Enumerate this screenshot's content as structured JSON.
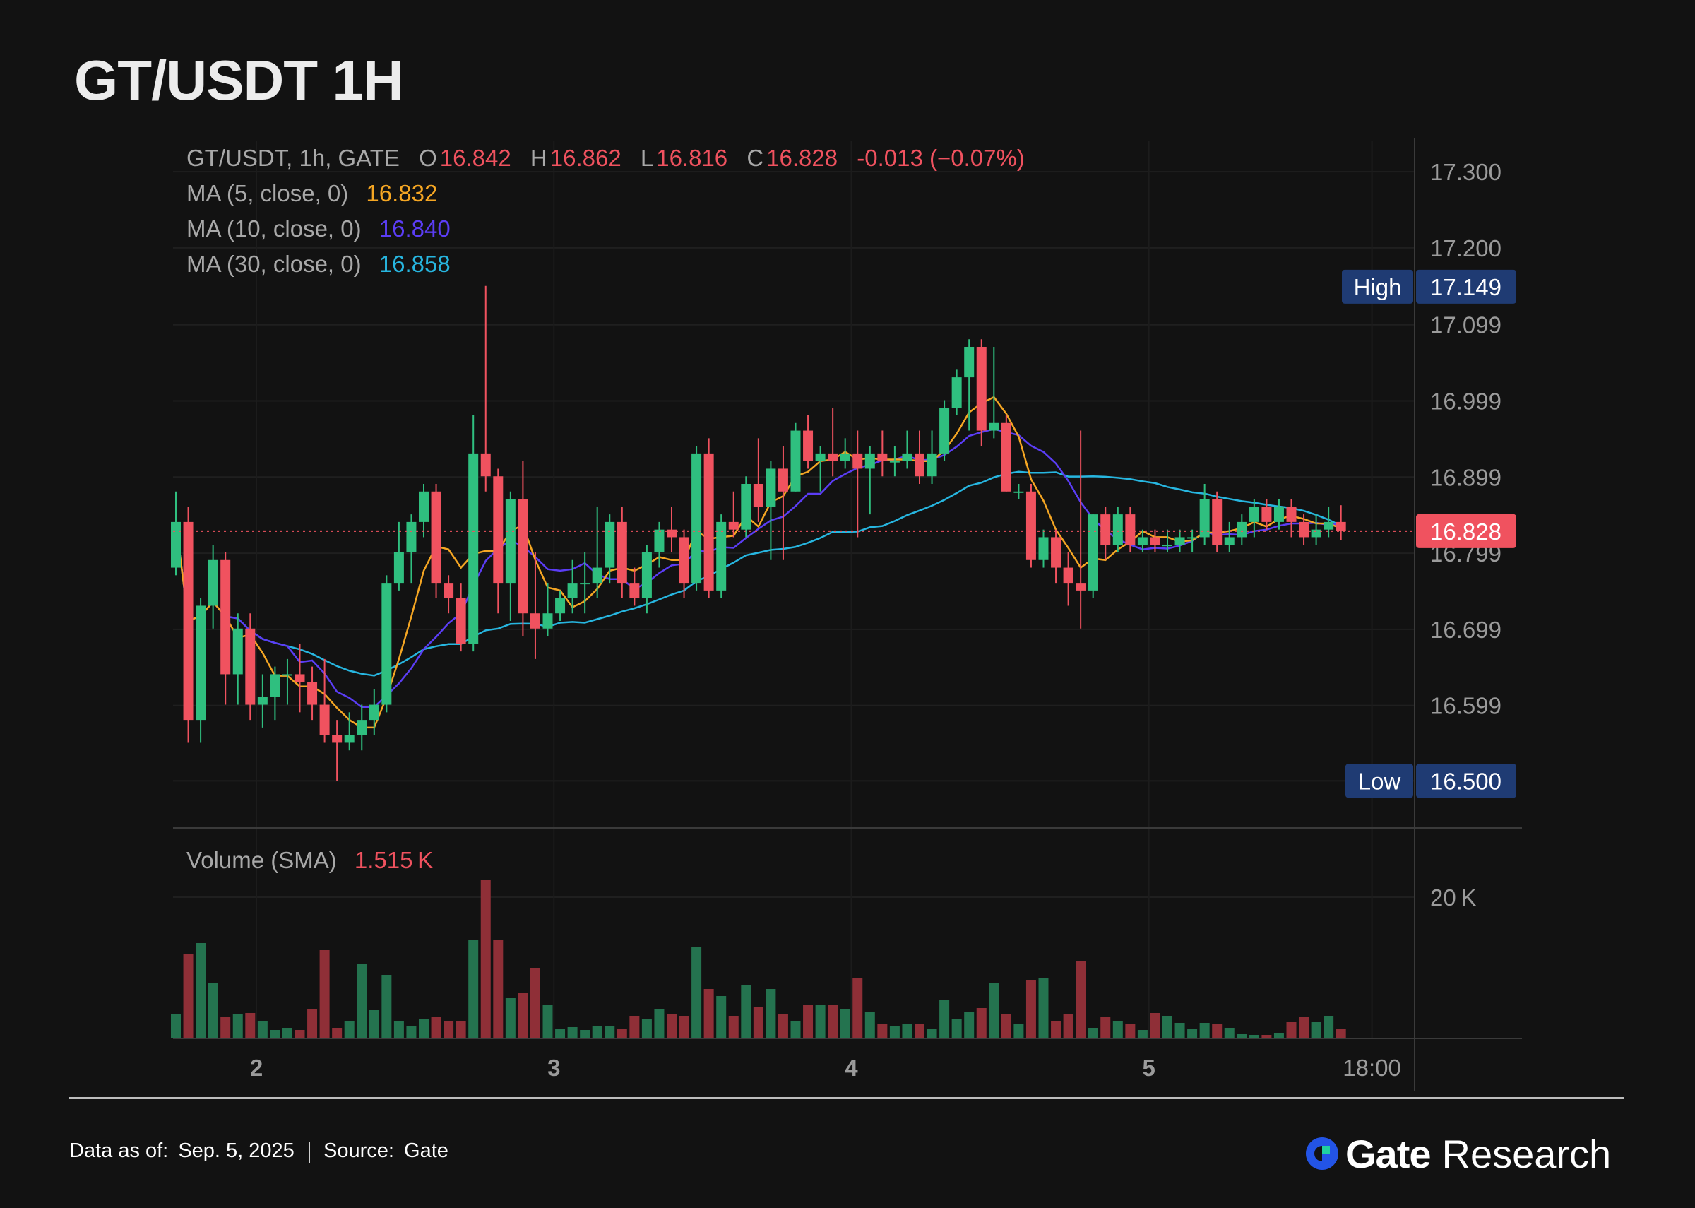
{
  "title": "GT/USDT 1H",
  "legend": {
    "symbol": "GT/USDT, 1h, GATE",
    "o_label": "O",
    "o_value": "16.842",
    "h_label": "H",
    "h_value": "16.862",
    "l_label": "L",
    "l_value": "16.816",
    "c_label": "C",
    "c_value": "16.828",
    "change": "-0.013 (−0.07%)",
    "ma5_label": "MA (5, close, 0)",
    "ma5_value": "16.832",
    "ma10_label": "MA (10, close, 0)",
    "ma10_value": "16.840",
    "ma30_label": "MA (30, close, 0)",
    "ma30_value": "16.858",
    "volume_label": "Volume (SMA)",
    "volume_value": "1.515 K"
  },
  "colors": {
    "up": "#2fbf7f",
    "down": "#f0525f",
    "vol_up": "#24734f",
    "vol_down": "#8f2f37",
    "ma5": "#f5a623",
    "ma10": "#5b3df5",
    "ma30": "#27b6e0",
    "badge": "#1f3b73",
    "last_badge": "#f0525f"
  },
  "footer": {
    "data_as_of_label": "Data as of:",
    "data_as_of_value": "Sep. 5, 2025",
    "source_label": "Source:",
    "source_value": "Gate",
    "brand_name": "Gate",
    "brand_sub": "Research"
  },
  "chart_data": {
    "type": "candlestick",
    "ylim": [
      16.44,
      17.34
    ],
    "y_ticks": [
      "17.300",
      "17.200",
      "17.099",
      "16.999",
      "16.899",
      "16.799",
      "16.699",
      "16.599"
    ],
    "y_tick_values": [
      17.3,
      17.2,
      17.099,
      16.999,
      16.899,
      16.799,
      16.699,
      16.599
    ],
    "x_ticks": [
      "2",
      "3",
      "4",
      "5",
      "18:00"
    ],
    "x_tick_index": [
      6.5,
      30.5,
      54.5,
      78.5,
      96.5
    ],
    "high": {
      "label": "High",
      "value": "17.149",
      "level": 17.149
    },
    "low": {
      "label": "Low",
      "value": "16.500",
      "level": 16.5
    },
    "last_price": {
      "value": "16.828",
      "level": 16.828
    },
    "volume_tick": {
      "label": "20 K",
      "value": 20000
    },
    "volume_max": 22500,
    "candles": [
      [
        16.78,
        16.84,
        16.88,
        16.77,
        3500
      ],
      [
        16.84,
        16.58,
        16.86,
        16.55,
        12000
      ],
      [
        16.58,
        16.73,
        16.74,
        16.55,
        13500
      ],
      [
        16.73,
        16.79,
        16.81,
        16.7,
        7800
      ],
      [
        16.79,
        16.64,
        16.8,
        16.6,
        3000
      ],
      [
        16.64,
        16.7,
        16.72,
        16.6,
        3500
      ],
      [
        16.7,
        16.6,
        16.72,
        16.58,
        3600
      ],
      [
        16.6,
        16.61,
        16.64,
        16.57,
        2500
      ],
      [
        16.61,
        16.64,
        16.65,
        16.58,
        1200
      ],
      [
        16.64,
        16.64,
        16.66,
        16.6,
        1500
      ],
      [
        16.64,
        16.63,
        16.68,
        16.59,
        1200
      ],
      [
        16.63,
        16.6,
        16.65,
        16.58,
        4200
      ],
      [
        16.6,
        16.56,
        16.66,
        16.55,
        12500
      ],
      [
        16.56,
        16.55,
        16.58,
        16.5,
        1500
      ],
      [
        16.55,
        16.56,
        16.59,
        16.54,
        2500
      ],
      [
        16.56,
        16.58,
        16.6,
        16.54,
        10500
      ],
      [
        16.58,
        16.6,
        16.62,
        16.56,
        4000
      ],
      [
        16.6,
        16.76,
        16.77,
        16.59,
        9000
      ],
      [
        16.76,
        16.8,
        16.84,
        16.75,
        2500
      ],
      [
        16.8,
        16.84,
        16.85,
        16.76,
        1800
      ],
      [
        16.84,
        16.88,
        16.89,
        16.82,
        2700
      ],
      [
        16.88,
        16.76,
        16.89,
        16.74,
        3000
      ],
      [
        16.76,
        16.74,
        16.77,
        16.72,
        2500
      ],
      [
        16.74,
        16.68,
        16.76,
        16.67,
        2500
      ],
      [
        16.68,
        16.93,
        16.98,
        16.67,
        14000
      ],
      [
        16.93,
        16.9,
        17.15,
        16.88,
        22500
      ],
      [
        16.9,
        16.76,
        16.91,
        16.72,
        14000
      ],
      [
        16.76,
        16.87,
        16.88,
        16.71,
        5700
      ],
      [
        16.87,
        16.72,
        16.92,
        16.69,
        6500
      ],
      [
        16.72,
        16.7,
        16.8,
        16.66,
        10000
      ],
      [
        16.7,
        16.72,
        16.76,
        16.69,
        4700
      ],
      [
        16.72,
        16.74,
        16.75,
        16.71,
        1300
      ],
      [
        16.74,
        16.76,
        16.79,
        16.72,
        1600
      ],
      [
        16.76,
        16.76,
        16.8,
        16.72,
        1200
      ],
      [
        16.76,
        16.78,
        16.86,
        16.74,
        1800
      ],
      [
        16.78,
        16.84,
        16.85,
        16.76,
        1800
      ],
      [
        16.84,
        16.76,
        16.86,
        16.74,
        1300
      ],
      [
        16.76,
        16.74,
        16.78,
        16.73,
        3200
      ],
      [
        16.74,
        16.8,
        16.81,
        16.72,
        2700
      ],
      [
        16.8,
        16.83,
        16.84,
        16.78,
        4100
      ],
      [
        16.83,
        16.82,
        16.86,
        16.8,
        3400
      ],
      [
        16.82,
        16.76,
        16.83,
        16.74,
        3200
      ],
      [
        16.76,
        16.93,
        16.94,
        16.75,
        13000
      ],
      [
        16.93,
        16.75,
        16.95,
        16.74,
        7000
      ],
      [
        16.75,
        16.84,
        16.85,
        16.74,
        6000
      ],
      [
        16.84,
        16.83,
        16.88,
        16.82,
        3200
      ],
      [
        16.83,
        16.89,
        16.9,
        16.82,
        7500
      ],
      [
        16.89,
        16.86,
        16.95,
        16.84,
        4400
      ],
      [
        16.86,
        16.91,
        16.92,
        16.79,
        7000
      ],
      [
        16.91,
        16.88,
        16.94,
        16.79,
        3500
      ],
      [
        16.88,
        16.96,
        16.97,
        16.88,
        2500
      ],
      [
        16.96,
        16.92,
        16.98,
        16.91,
        4700
      ],
      [
        16.92,
        16.93,
        16.94,
        16.88,
        4700
      ],
      [
        16.93,
        16.92,
        16.99,
        16.9,
        4700
      ],
      [
        16.92,
        16.93,
        16.95,
        16.91,
        4200
      ],
      [
        16.93,
        16.91,
        16.96,
        16.82,
        8600
      ],
      [
        16.91,
        16.93,
        16.94,
        16.85,
        3700
      ],
      [
        16.93,
        16.92,
        16.96,
        16.9,
        2000
      ],
      [
        16.92,
        16.92,
        16.94,
        16.9,
        1800
      ],
      [
        16.92,
        16.93,
        16.96,
        16.91,
        2000
      ],
      [
        16.93,
        16.9,
        16.96,
        16.89,
        2000
      ],
      [
        16.9,
        16.93,
        16.96,
        16.89,
        1300
      ],
      [
        16.93,
        16.99,
        17.0,
        16.92,
        5500
      ],
      [
        16.99,
        17.03,
        17.04,
        16.98,
        2800
      ],
      [
        17.03,
        17.07,
        17.08,
        16.96,
        3800
      ],
      [
        17.07,
        16.96,
        17.08,
        16.94,
        4300
      ],
      [
        16.96,
        16.97,
        17.07,
        16.95,
        7900
      ],
      [
        16.97,
        16.88,
        16.98,
        16.88,
        3500
      ],
      [
        16.88,
        16.88,
        16.89,
        16.87,
        2000
      ],
      [
        16.88,
        16.79,
        16.89,
        16.78,
        8300
      ],
      [
        16.79,
        16.82,
        16.83,
        16.78,
        8600
      ],
      [
        16.82,
        16.78,
        16.83,
        16.76,
        2500
      ],
      [
        16.78,
        16.76,
        16.8,
        16.73,
        3400
      ],
      [
        16.76,
        16.75,
        16.96,
        16.7,
        11000
      ],
      [
        16.75,
        16.85,
        16.85,
        16.74,
        1500
      ],
      [
        16.85,
        16.81,
        16.86,
        16.79,
        3100
      ],
      [
        16.81,
        16.85,
        16.86,
        16.8,
        2500
      ],
      [
        16.85,
        16.81,
        16.86,
        16.8,
        2000
      ],
      [
        16.81,
        16.82,
        16.83,
        16.8,
        1200
      ],
      [
        16.82,
        16.81,
        16.83,
        16.8,
        3600
      ],
      [
        16.81,
        16.81,
        16.83,
        16.8,
        3200
      ],
      [
        16.81,
        16.82,
        16.83,
        16.8,
        2200
      ],
      [
        16.82,
        16.82,
        16.83,
        16.8,
        1300
      ],
      [
        16.82,
        16.87,
        16.89,
        16.81,
        2200
      ],
      [
        16.87,
        16.81,
        16.88,
        16.8,
        2000
      ],
      [
        16.81,
        16.82,
        16.84,
        16.8,
        1500
      ],
      [
        16.82,
        16.84,
        16.85,
        16.81,
        700
      ],
      [
        16.84,
        16.86,
        16.87,
        16.82,
        500
      ],
      [
        16.86,
        16.84,
        16.87,
        16.83,
        500
      ],
      [
        16.84,
        16.86,
        16.87,
        16.83,
        800
      ],
      [
        16.86,
        16.84,
        16.87,
        16.82,
        2300
      ],
      [
        16.84,
        16.82,
        16.85,
        16.81,
        3100
      ],
      [
        16.82,
        16.83,
        16.85,
        16.81,
        2400
      ],
      [
        16.83,
        16.84,
        16.86,
        16.82,
        3200
      ],
      [
        16.84,
        16.828,
        16.862,
        16.816,
        1400
      ]
    ]
  }
}
